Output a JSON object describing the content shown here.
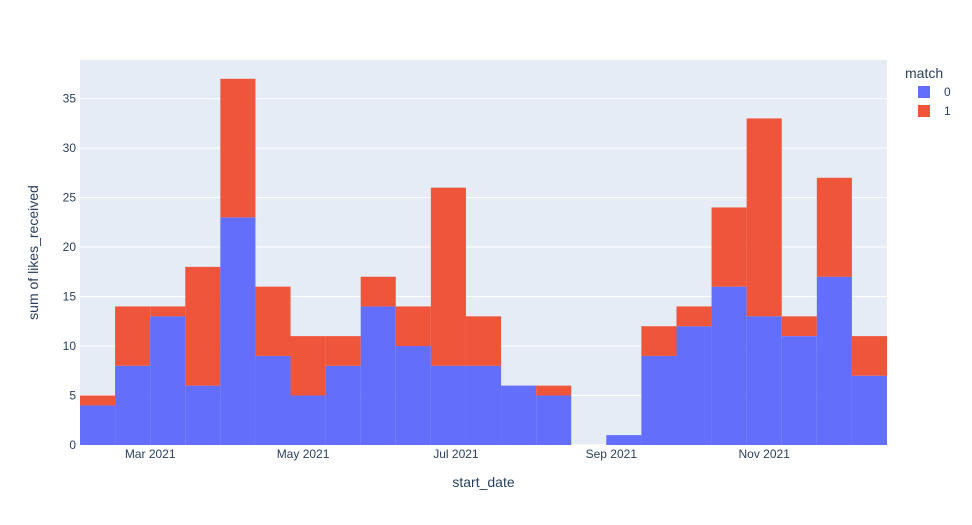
{
  "chart_data": {
    "type": "bar",
    "barmode": "stack",
    "xlabel": "start_date",
    "ylabel": "sum of likes_received",
    "ylim": [
      0,
      38.9
    ],
    "y_ticks": [
      0,
      5,
      10,
      15,
      20,
      25,
      30,
      35
    ],
    "x_ticks": [
      {
        "date": "2021-03-01",
        "label": "Mar 2021"
      },
      {
        "date": "2021-05-01",
        "label": "May 2021"
      },
      {
        "date": "2021-07-01",
        "label": "Jul 2021"
      },
      {
        "date": "2021-09-01",
        "label": "Sep 2021"
      },
      {
        "date": "2021-11-01",
        "label": "Nov 2021"
      }
    ],
    "bin_starts": [
      "2021-02-01",
      "2021-02-15",
      "2021-03-01",
      "2021-03-15",
      "2021-03-29",
      "2021-04-12",
      "2021-04-26",
      "2021-05-10",
      "2021-05-24",
      "2021-06-07",
      "2021-06-21",
      "2021-07-05",
      "2021-07-19",
      "2021-08-02",
      "2021-08-16",
      "2021-08-30",
      "2021-09-13",
      "2021-09-27",
      "2021-10-11",
      "2021-10-25",
      "2021-11-08",
      "2021-11-22",
      "2021-12-06"
    ],
    "bin_days": 14,
    "grid": true,
    "legend": {
      "title": "match",
      "placement": "top-right"
    },
    "series": [
      {
        "name": "0",
        "color": "#636efa",
        "values": [
          4,
          8,
          13,
          6,
          23,
          9,
          5,
          8,
          14,
          10,
          8,
          8,
          6,
          5,
          0,
          1,
          9,
          12,
          16,
          13,
          11,
          17,
          7
        ]
      },
      {
        "name": "1",
        "color": "#ef553b",
        "values": [
          1,
          6,
          1,
          12,
          14,
          7,
          6,
          3,
          3,
          4,
          18,
          5,
          0,
          1,
          0,
          0,
          3,
          2,
          8,
          20,
          2,
          10,
          4
        ]
      }
    ],
    "colors": {
      "plot_bg": "#e5ecf6",
      "grid": "#ffffff",
      "text": "#2a3f5f"
    }
  }
}
